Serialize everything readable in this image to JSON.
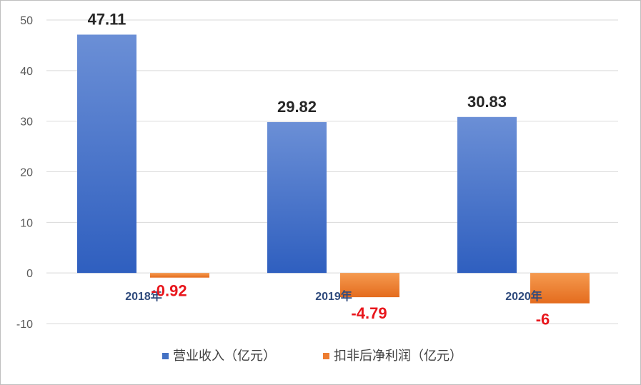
{
  "colors": {
    "series1": "#4472c4",
    "series2": "#ed7d31",
    "grid": "#d9d9d9",
    "negative_label": "#e8161c"
  },
  "chart_data": {
    "type": "bar",
    "categories": [
      "2018年",
      "2019年",
      "2020年"
    ],
    "series": [
      {
        "name": "营业收入（亿元）",
        "values": [
          47.11,
          29.82,
          30.83
        ],
        "labels": [
          "47.11",
          "29.82",
          "30.83"
        ]
      },
      {
        "name": "扣非后净利润（亿元）",
        "values": [
          -0.92,
          -4.79,
          -6
        ],
        "labels": [
          "-0.92",
          "-4.79",
          "-6"
        ]
      }
    ],
    "yticks": [
      "50",
      "40",
      "30",
      "20",
      "10",
      "0",
      "-10"
    ],
    "ylim": [
      -10,
      50
    ],
    "grid": true,
    "legend": "bottom"
  }
}
